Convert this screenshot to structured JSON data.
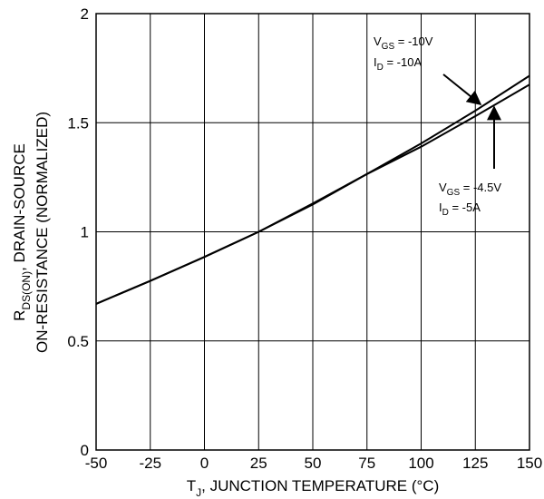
{
  "chart_data": {
    "type": "line",
    "title": "",
    "xlabel": {
      "pre": "T",
      "sub": "J",
      "post": ", JUNCTION TEMPERATURE (°C)"
    },
    "ylabel": {
      "line1": {
        "pre": "R",
        "sub": "DS(ON)",
        "post": ", DRAIN-SOURCE"
      },
      "line2": "ON-RESISTANCE (NORMALIZED)"
    },
    "xlim": [
      -50,
      150
    ],
    "ylim": [
      0,
      2
    ],
    "xticks": [
      -50,
      -25,
      0,
      25,
      50,
      75,
      100,
      125,
      150
    ],
    "yticks": [
      0,
      0.5,
      1,
      1.5,
      2
    ],
    "xtick_labels": [
      "-50",
      "-25",
      "0",
      "25",
      "50",
      "75",
      "100",
      "125",
      "150"
    ],
    "ytick_labels": [
      "0",
      "0.5",
      "1",
      "1.5",
      "2"
    ],
    "grid": true,
    "series": [
      {
        "x": [
          -50,
          -25,
          0,
          25,
          50,
          75,
          100,
          125,
          150
        ],
        "values": [
          0.67,
          0.775,
          0.885,
          1.0,
          1.125,
          1.265,
          1.405,
          1.555,
          1.715
        ]
      },
      {
        "x": [
          -50,
          -25,
          0,
          25,
          50,
          75,
          100,
          125,
          150
        ],
        "values": [
          0.67,
          0.775,
          0.885,
          1.0,
          1.13,
          1.265,
          1.39,
          1.53,
          1.675
        ]
      }
    ],
    "annotations": [
      {
        "line1": {
          "pre": "V",
          "sub": "GS",
          "post": " = -10V"
        },
        "line2": {
          "pre": "I",
          "sub": "D",
          "post": " = -10A"
        }
      },
      {
        "line1": {
          "pre": "V",
          "sub": "GS",
          "post": " = -4.5V"
        },
        "line2": {
          "pre": "I",
          "sub": "D",
          "post": " = -5A"
        }
      }
    ]
  }
}
